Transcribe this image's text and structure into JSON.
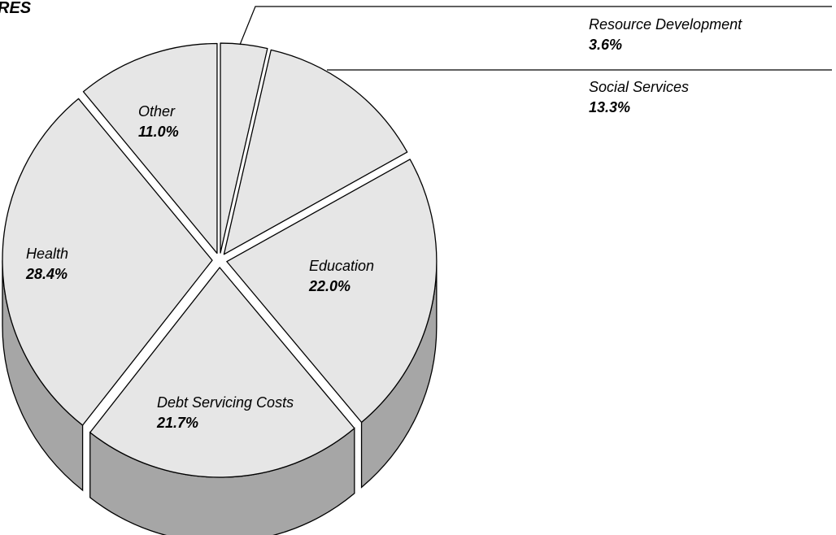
{
  "chart_data": {
    "type": "pie",
    "title": "RES",
    "slices": [
      {
        "label": "Resource Development",
        "percent": "3.6%",
        "value": 3.6
      },
      {
        "label": "Social Services",
        "percent": "13.3%",
        "value": 13.3
      },
      {
        "label": "Education",
        "percent": "22.0%",
        "value": 22.0
      },
      {
        "label": "Debt Servicing Costs",
        "percent": "21.7%",
        "value": 21.7
      },
      {
        "label": "Health",
        "percent": "28.4%",
        "value": 28.4
      },
      {
        "label": "Other",
        "percent": "11.0%",
        "value": 11.0
      }
    ],
    "legend": "none",
    "grid": false,
    "style": "3d-exploded",
    "colors": {
      "top": "#e6e6e6",
      "side": "#a6a6a6",
      "edge": "#000000"
    }
  }
}
